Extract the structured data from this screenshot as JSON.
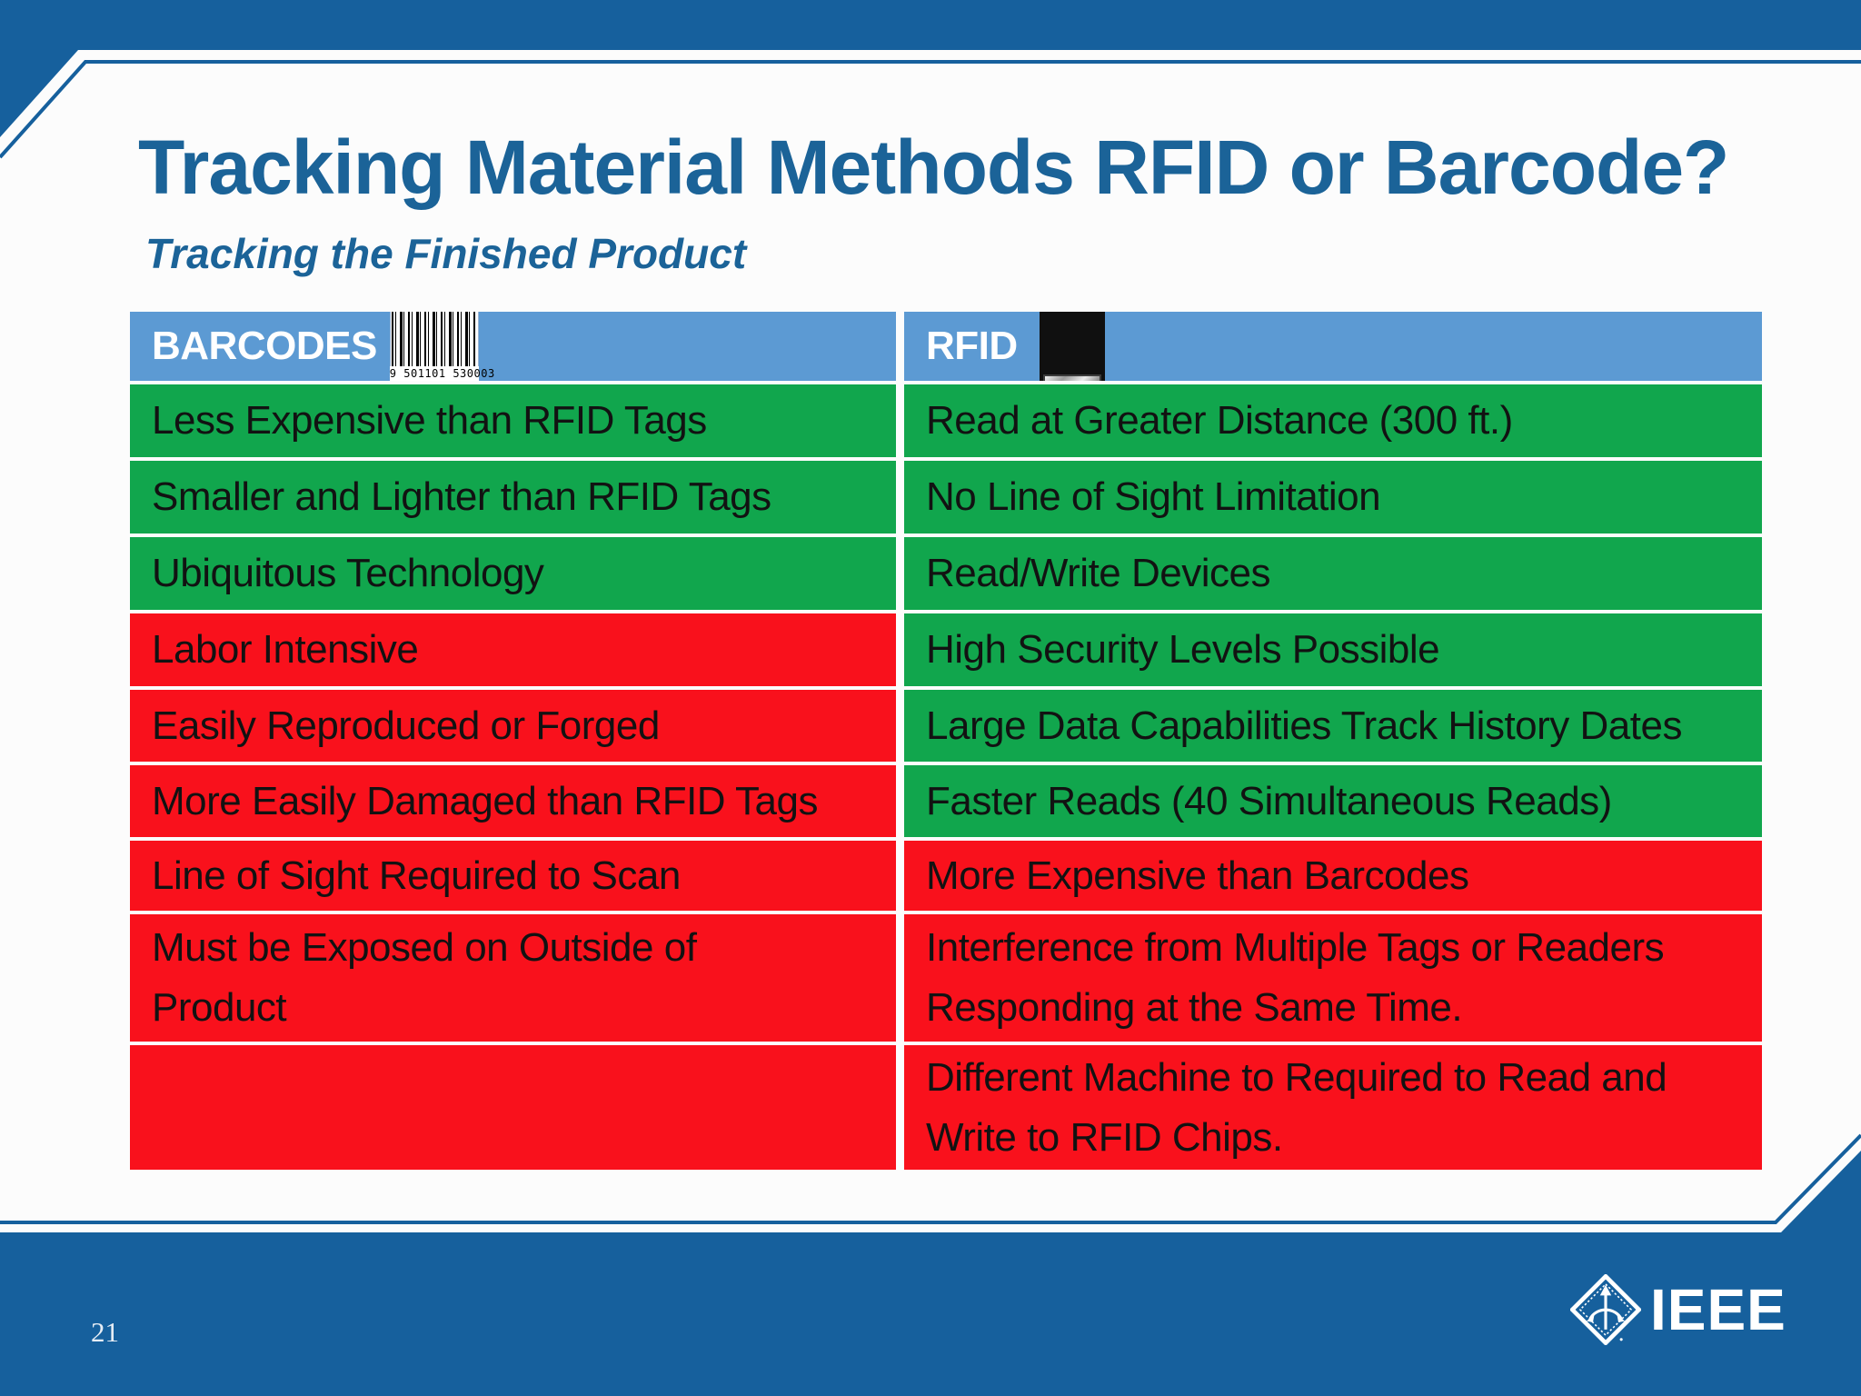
{
  "slide": {
    "title": "Tracking Material Methods RFID or Barcode?",
    "subtitle": "Tracking the Finished Product",
    "page_number": "21",
    "brand": "IEEE"
  },
  "colors": {
    "frame-blue": "#16609D",
    "header-blue": "#5C9AD3",
    "positive-green": "#11A64D",
    "negative-red": "#F9111C",
    "title-blue": "#1B6398",
    "page-bg": "#FCFCFC"
  },
  "table": {
    "columns": [
      {
        "label": "BARCODES",
        "icon": "barcode-icon"
      },
      {
        "label": "RFID",
        "icon": "rfid-chip-icon"
      }
    ],
    "barcode_number": "9 501101 530003",
    "rows": [
      {
        "barcodes": {
          "text": "Less Expensive than RFID Tags",
          "sentiment": "positive"
        },
        "rfid": {
          "text": "Read at Greater Distance (300 ft.)",
          "sentiment": "positive"
        }
      },
      {
        "barcodes": {
          "text": "Smaller and Lighter than RFID Tags",
          "sentiment": "positive"
        },
        "rfid": {
          "text": "No Line of Sight Limitation",
          "sentiment": "positive"
        }
      },
      {
        "barcodes": {
          "text": "Ubiquitous Technology",
          "sentiment": "positive"
        },
        "rfid": {
          "text": "Read/Write Devices",
          "sentiment": "positive"
        }
      },
      {
        "barcodes": {
          "text": "Labor Intensive",
          "sentiment": "negative"
        },
        "rfid": {
          "text": "High Security Levels Possible",
          "sentiment": "positive"
        }
      },
      {
        "barcodes": {
          "text": "Easily Reproduced or Forged",
          "sentiment": "negative"
        },
        "rfid": {
          "text": "Large Data Capabilities Track History Dates",
          "sentiment": "positive"
        }
      },
      {
        "barcodes": {
          "text": "More Easily Damaged than RFID Tags",
          "sentiment": "negative"
        },
        "rfid": {
          "text": "Faster Reads (40 Simultaneous Reads)",
          "sentiment": "positive"
        }
      },
      {
        "barcodes": {
          "text": "Line of Sight Required to Scan",
          "sentiment": "negative"
        },
        "rfid": {
          "text": "More Expensive than Barcodes",
          "sentiment": "negative"
        }
      },
      {
        "barcodes": {
          "text": "Must be Exposed on Outside of\nProduct",
          "sentiment": "negative"
        },
        "rfid": {
          "text": "Interference from Multiple Tags or Readers\nResponding at the Same Time.",
          "sentiment": "negative"
        }
      },
      {
        "barcodes": {
          "text": "",
          "sentiment": "negative"
        },
        "rfid": {
          "text": "Different Machine to Required to Read and\nWrite to RFID Chips.",
          "sentiment": "negative"
        }
      }
    ]
  }
}
